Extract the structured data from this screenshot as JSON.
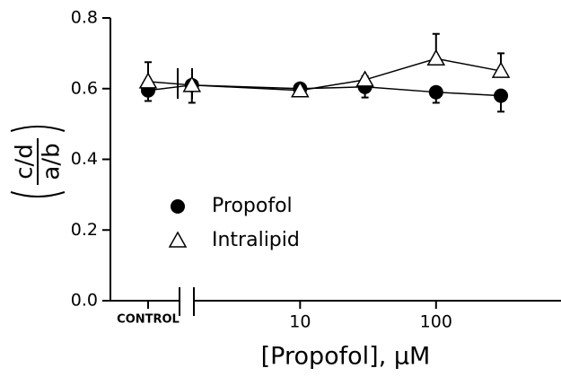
{
  "chart_data": {
    "type": "line",
    "xlabel": "[Propofol], μM",
    "ylabel": {
      "numerator": "c/d",
      "denominator": "a/b"
    },
    "control_label": "CONTROL",
    "x": [
      1.6,
      10,
      30,
      100,
      300
    ],
    "xlim": [
      1.4,
      830
    ],
    "xticks": [
      10,
      100
    ],
    "xscale": "log",
    "ylim": [
      0,
      0.8
    ],
    "yticks": [
      {
        "value": 0,
        "label": "0.0"
      },
      {
        "value": 0.2,
        "label": "0.2"
      },
      {
        "value": 0.4,
        "label": "0.4"
      },
      {
        "value": 0.6,
        "label": "0.6"
      },
      {
        "value": 0.8,
        "label": "0.8"
      }
    ],
    "legend": "lower left",
    "series": [
      {
        "name": "Propofol",
        "color": "#000000",
        "marker": "circle",
        "error_direction": "down",
        "control": 0.595,
        "control_error": 0.03,
        "values": [
          0.61,
          0.6,
          0.605,
          0.59,
          0.58
        ],
        "errors": [
          0.05,
          0.01,
          0.03,
          0.03,
          0.045
        ]
      },
      {
        "name": "Intralipid",
        "color": "#000000",
        "marker": "triangle",
        "error_direction": "up",
        "control": 0.62,
        "control_error": 0.055,
        "values": [
          0.61,
          0.595,
          0.625,
          0.685,
          0.65
        ],
        "errors": [
          0.01,
          0.012,
          0.01,
          0.07,
          0.05
        ]
      }
    ]
  }
}
